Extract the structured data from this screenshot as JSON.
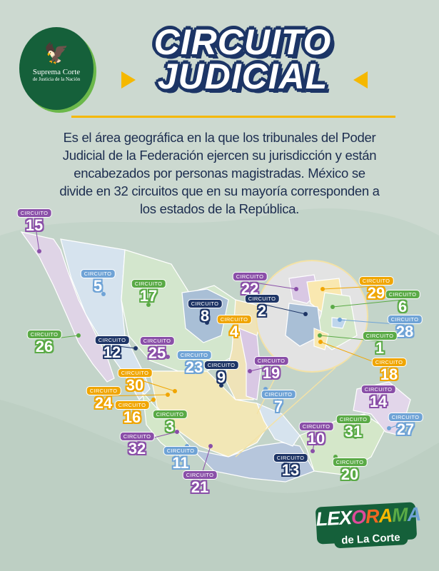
{
  "logo": {
    "name": "Suprema Corte",
    "subtitle": "de Justicia de la Nación"
  },
  "title": {
    "line1": "CIRCUITO",
    "line2": "JUDICIAL"
  },
  "description": "Es el área geográfica en la que los tribunales del Poder Judicial de la Federación ejercen su jurisdicción y están encabezados por personas magistradas. México se divide en 32 circuitos que en su mayoría corresponden a los estados de la República.",
  "colors": {
    "purple": "#8a4fa8",
    "navy": "#1e3566",
    "yellow": "#f0a500",
    "green": "#5aaa46",
    "blue": "#6fa3d6",
    "accent": "#f5b800",
    "background": "#ccd9d0"
  },
  "circuit_word": "CIRCUITO",
  "circuits": [
    {
      "n": "15",
      "color": "purple"
    },
    {
      "n": "5",
      "color": "blue"
    },
    {
      "n": "17",
      "color": "green"
    },
    {
      "n": "8",
      "color": "navy"
    },
    {
      "n": "22",
      "color": "purple"
    },
    {
      "n": "2",
      "color": "navy"
    },
    {
      "n": "4",
      "color": "yellow"
    },
    {
      "n": "29",
      "color": "yellow"
    },
    {
      "n": "6",
      "color": "green"
    },
    {
      "n": "28",
      "color": "blue"
    },
    {
      "n": "1",
      "color": "green"
    },
    {
      "n": "18",
      "color": "yellow"
    },
    {
      "n": "26",
      "color": "green"
    },
    {
      "n": "12",
      "color": "navy"
    },
    {
      "n": "25",
      "color": "purple"
    },
    {
      "n": "23",
      "color": "blue"
    },
    {
      "n": "9",
      "color": "navy"
    },
    {
      "n": "19",
      "color": "purple"
    },
    {
      "n": "30",
      "color": "yellow"
    },
    {
      "n": "24",
      "color": "yellow"
    },
    {
      "n": "16",
      "color": "yellow"
    },
    {
      "n": "3",
      "color": "green"
    },
    {
      "n": "7",
      "color": "blue"
    },
    {
      "n": "14",
      "color": "purple"
    },
    {
      "n": "31",
      "color": "green"
    },
    {
      "n": "27",
      "color": "blue"
    },
    {
      "n": "32",
      "color": "purple"
    },
    {
      "n": "11",
      "color": "blue"
    },
    {
      "n": "10",
      "color": "purple"
    },
    {
      "n": "13",
      "color": "navy"
    },
    {
      "n": "21",
      "color": "purple"
    },
    {
      "n": "20",
      "color": "green"
    }
  ],
  "brand": {
    "main": "LEXORAMA",
    "sub": "de La Corte",
    "letter_colors": [
      "#ffffff",
      "#ffffff",
      "#ffffff",
      "#e04a9a",
      "#f26522",
      "#f5b800",
      "#5aaa46",
      "#6fa3d6"
    ]
  }
}
